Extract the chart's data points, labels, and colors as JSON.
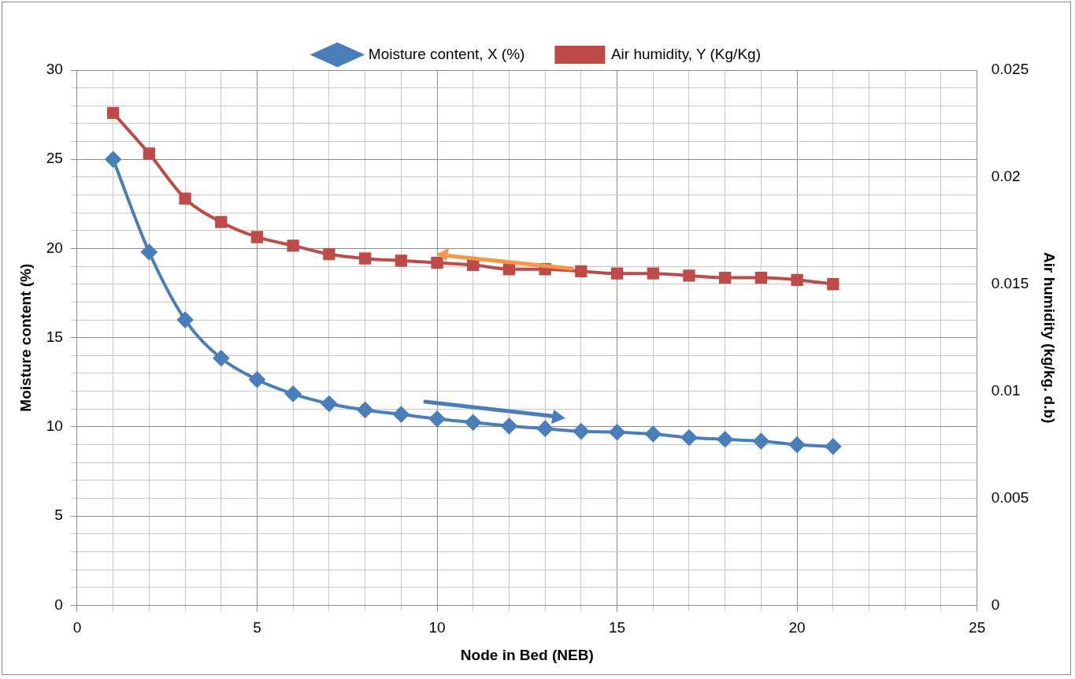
{
  "chart_data": {
    "type": "line",
    "xlabel": "Node in Bed (NEB)",
    "ylabel": "Moisture content (%)",
    "y2label": "Air humidity (kg/kg. d.b)",
    "x": [
      1,
      2,
      3,
      4,
      5,
      6,
      7,
      8,
      9,
      10,
      11,
      12,
      13,
      14,
      15,
      16,
      17,
      18,
      19,
      20,
      21
    ],
    "series": [
      {
        "name": "Moisture content, X (%)",
        "color": "#4a7ebb",
        "marker": "diamond",
        "values": [
          25.0,
          19.8,
          16.0,
          13.85,
          12.65,
          11.85,
          11.3,
          10.95,
          10.7,
          10.45,
          10.25,
          10.05,
          9.9,
          9.75,
          9.7,
          9.6,
          9.4,
          9.3,
          9.2,
          9.0,
          8.9
        ]
      },
      {
        "name": "Air humidity, Y (Kg/Kg)",
        "color": "#be4b48",
        "marker": "square",
        "axis": "y2",
        "values": [
          0.023,
          0.0211,
          0.019,
          0.0179,
          0.0172,
          0.0168,
          0.0164,
          0.0162,
          0.0161,
          0.016,
          0.0159,
          0.0157,
          0.0157,
          0.0156,
          0.0155,
          0.0155,
          0.0154,
          0.0153,
          0.0153,
          0.0152,
          0.015
        ]
      }
    ],
    "xlim": [
      0,
      25
    ],
    "xticks": [
      0,
      {
        "value": 1,
        "label": null
      },
      {
        "value": 2,
        "label": null
      },
      {
        "value": 3,
        "label": null
      },
      {
        "value": 4,
        "label": null
      },
      5,
      {
        "value": 6,
        "label": null
      },
      {
        "value": 7,
        "label": null
      },
      {
        "value": 8,
        "label": null
      },
      {
        "value": 9,
        "label": null
      },
      10,
      {
        "value": 11,
        "label": null
      },
      {
        "value": 12,
        "label": null
      },
      {
        "value": 13,
        "label": null
      },
      {
        "value": 14,
        "label": null
      },
      15,
      {
        "value": 16,
        "label": null
      },
      {
        "value": 17,
        "label": null
      },
      {
        "value": 18,
        "label": null
      },
      {
        "value": 19,
        "label": null
      },
      20,
      {
        "value": 21,
        "label": null
      },
      {
        "value": 22,
        "label": null
      },
      {
        "value": 23,
        "label": null
      },
      {
        "value": 24,
        "label": null
      },
      25
    ],
    "ylim": [
      0,
      30
    ],
    "yticks": [
      0,
      {
        "value": 1,
        "label": null
      },
      {
        "value": 2,
        "label": null
      },
      {
        "value": 3,
        "label": null
      },
      {
        "value": 4,
        "label": null
      },
      5,
      {
        "value": 6,
        "label": null
      },
      {
        "value": 7,
        "label": null
      },
      {
        "value": 8,
        "label": null
      },
      {
        "value": 9,
        "label": null
      },
      10,
      {
        "value": 11,
        "label": null
      },
      {
        "value": 12,
        "label": null
      },
      {
        "value": 13,
        "label": null
      },
      {
        "value": 14,
        "label": null
      },
      15,
      {
        "value": 16,
        "label": null
      },
      {
        "value": 17,
        "label": null
      },
      {
        "value": 18,
        "label": null
      },
      {
        "value": 19,
        "label": null
      },
      20,
      {
        "value": 21,
        "label": null
      },
      {
        "value": 22,
        "label": null
      },
      {
        "value": 23,
        "label": null
      },
      {
        "value": 24,
        "label": null
      },
      25,
      {
        "value": 26,
        "label": null
      },
      {
        "value": 27,
        "label": null
      },
      {
        "value": 28,
        "label": null
      },
      {
        "value": 29,
        "label": null
      },
      30
    ],
    "y2lim": [
      0,
      0.025
    ],
    "y2ticks": [
      0,
      0.005,
      0.01,
      0.015,
      0.02,
      0.025
    ],
    "grid": true,
    "legend": "top",
    "line_style": "solid"
  }
}
